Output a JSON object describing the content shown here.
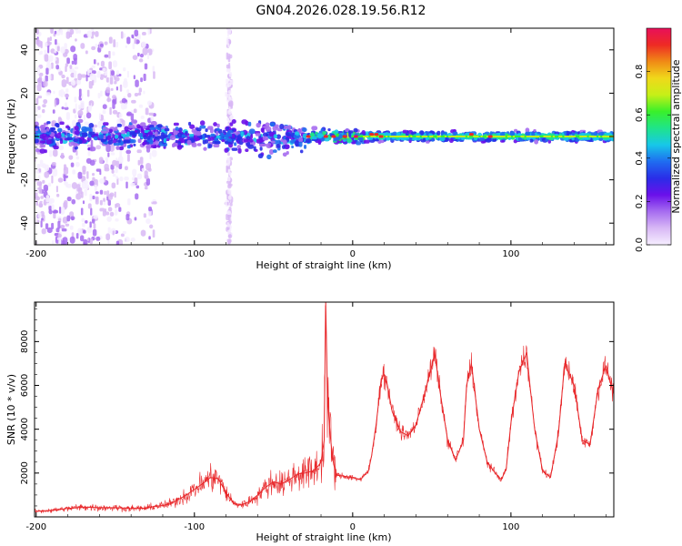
{
  "page": {
    "title": "GN04.2026.028.19.56.R12"
  },
  "colors": {
    "snr_line": "#e8282b",
    "axis": "#000000",
    "background": "#ffffff",
    "colormap": [
      "#f6eeff",
      "#d8b8f5",
      "#a66cf0",
      "#6a10ea",
      "#2a2de8",
      "#1f6df0",
      "#17c8e8",
      "#1fe48a",
      "#39f02a",
      "#c6f018",
      "#f0d81a",
      "#f08a16",
      "#ee2a24",
      "#e8105a"
    ]
  },
  "chart_data": [
    {
      "type": "heatmap",
      "name": "spectrogram",
      "title": "GN04.2026.028.19.56.R12",
      "xlabel": "Height of straight line (km)",
      "ylabel": "Frequency (Hz)",
      "xlim": [
        -201,
        165
      ],
      "ylim": [
        -50,
        50
      ],
      "xticks": [
        -200,
        -100,
        0,
        100
      ],
      "yticks": [
        -40,
        -20,
        0,
        20,
        40
      ],
      "xtick_labels": [
        "-200",
        "-100",
        "0",
        "100"
      ],
      "ytick_labels": [
        "-40",
        "-20",
        "0",
        "20",
        "40"
      ],
      "colorbar": {
        "label": "Normalized spectral amplitude",
        "range": [
          0,
          1
        ],
        "ticks": [
          0.0,
          0.2,
          0.4,
          0.6,
          0.8
        ],
        "tick_labels": [
          "0.0",
          "0.2",
          "0.4",
          "0.6",
          "0.8"
        ]
      },
      "features": {
        "noisy_region_km": [
          -201,
          -125
        ],
        "spike_column_km": -78,
        "main_band_center_hz": 0,
        "band_halfwidth_far_hz": 3,
        "bright_stretch_km": [
          0,
          165
        ]
      }
    },
    {
      "type": "line",
      "name": "snr",
      "xlabel": "Height of straight line (km)",
      "ylabel": "SNR (10 * v/v)",
      "xlim": [
        -201,
        165
      ],
      "ylim": [
        0,
        9800
      ],
      "xticks": [
        -200,
        -100,
        0,
        100
      ],
      "yticks": [
        2000,
        4000,
        6000,
        8000
      ],
      "xtick_labels": [
        "-200",
        "-100",
        "0",
        "100"
      ],
      "ytick_labels": [
        "2000",
        "4000",
        "6000",
        "8000"
      ],
      "series": [
        {
          "name": "SNR",
          "x": [
            -201,
            -190,
            -180,
            -170,
            -160,
            -150,
            -140,
            -130,
            -125,
            -120,
            -115,
            -110,
            -105,
            -100,
            -95,
            -90,
            -85,
            -80,
            -75,
            -70,
            -65,
            -60,
            -55,
            -50,
            -45,
            -40,
            -35,
            -30,
            -25,
            -22,
            -20,
            -18,
            -17,
            -16,
            -15,
            -14,
            -13,
            -12,
            -10,
            -5,
            0,
            5,
            10,
            12,
            15,
            18,
            20,
            22,
            25,
            28,
            30,
            35,
            40,
            45,
            50,
            52,
            55,
            60,
            65,
            70,
            72,
            75,
            80,
            85,
            90,
            94,
            97,
            100,
            105,
            110,
            112,
            115,
            120,
            125,
            130,
            134,
            140,
            145,
            150,
            155,
            160,
            165
          ],
          "values": [
            250,
            300,
            380,
            450,
            420,
            420,
            380,
            400,
            480,
            520,
            600,
            800,
            1000,
            1250,
            1500,
            1800,
            1750,
            1100,
            600,
            550,
            700,
            1000,
            1350,
            1600,
            1500,
            1700,
            1950,
            2000,
            2100,
            2300,
            2500,
            3500,
            9800,
            5800,
            4500,
            3600,
            2900,
            2400,
            1900,
            1850,
            1800,
            1700,
            2100,
            2800,
            4300,
            6300,
            6500,
            6000,
            4800,
            4300,
            3900,
            3700,
            4200,
            5500,
            6900,
            7400,
            5800,
            3500,
            2600,
            3500,
            6000,
            7000,
            4000,
            2500,
            2000,
            1700,
            2200,
            4300,
            6600,
            7500,
            6000,
            4000,
            2100,
            1800,
            3800,
            7000,
            6000,
            3500,
            3300,
            5800,
            6900,
            5600
          ]
        }
      ]
    }
  ]
}
